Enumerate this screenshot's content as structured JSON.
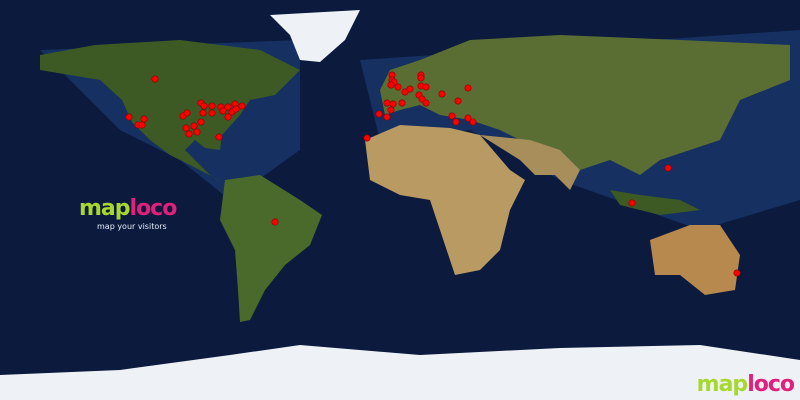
{
  "logo": {
    "part1": "map",
    "part2": "loco",
    "tagline": "map your visitors"
  },
  "colors": {
    "ocean": "#0b1a3d",
    "shelf": "#1d3f7a",
    "land_green": "#3d5a24",
    "land_desert": "#b89a62",
    "ice": "#eef2f6",
    "marker": "#ff0000"
  },
  "projection": "equirectangular",
  "visitors": [
    [
      54.45,
      -110.25
    ],
    [
      37.35,
      -121.95
    ],
    [
      33.75,
      -117.9
    ],
    [
      33.75,
      -116.1
    ],
    [
      36.45,
      -115.2
    ],
    [
      37.8,
      -97.65
    ],
    [
      39.15,
      -95.85
    ],
    [
      43.65,
      -89.55
    ],
    [
      42.3,
      -88.2
    ],
    [
      42.3,
      -84.6
    ],
    [
      41.85,
      -80.55
    ],
    [
      41.85,
      -77.4
    ],
    [
      43.2,
      -74.25
    ],
    [
      42.3,
      -71.1
    ],
    [
      39.15,
      -88.65
    ],
    [
      39.15,
      -84.6
    ],
    [
      40.05,
      -79.65
    ],
    [
      39.6,
      -75.6
    ],
    [
      37.35,
      -77.4
    ],
    [
      40.95,
      -73.8
    ],
    [
      35.1,
      -89.55
    ],
    [
      33.3,
      -92.7
    ],
    [
      32.4,
      -96.3
    ],
    [
      29.7,
      -94.95
    ],
    [
      30.6,
      -91.35
    ],
    [
      28.35,
      -81.45
    ],
    [
      56.25,
      -3.6
    ],
    [
      54.0,
      -3.6
    ],
    [
      53.1,
      -2.7
    ],
    [
      51.75,
      -4.05
    ],
    [
      50.85,
      -0.9
    ],
    [
      48.6,
      2.25
    ],
    [
      49.95,
      4.5
    ],
    [
      56.25,
      9.45
    ],
    [
      54.9,
      9.45
    ],
    [
      51.3,
      9.45
    ],
    [
      50.85,
      11.7
    ],
    [
      47.25,
      8.55
    ],
    [
      45.45,
      9.9
    ],
    [
      43.65,
      11.7
    ],
    [
      47.7,
      18.9
    ],
    [
      50.4,
      30.6
    ],
    [
      44.55,
      26.1
    ],
    [
      43.65,
      -5.85
    ],
    [
      43.2,
      -3.15
    ],
    [
      43.65,
      0.9
    ],
    [
      40.5,
      -4.05
    ],
    [
      38.7,
      -9.45
    ],
    [
      37.35,
      -5.85
    ],
    [
      37.8,
      23.4
    ],
    [
      35.1,
      25.2
    ],
    [
      36.9,
      30.6
    ],
    [
      35.1,
      32.85
    ],
    [
      27.9,
      -14.85
    ],
    [
      -9.9,
      -56.25
    ],
    [
      -1.35,
      104.4
    ],
    [
      14.4,
      120.6
    ],
    [
      -32.85,
      151.65
    ]
  ]
}
